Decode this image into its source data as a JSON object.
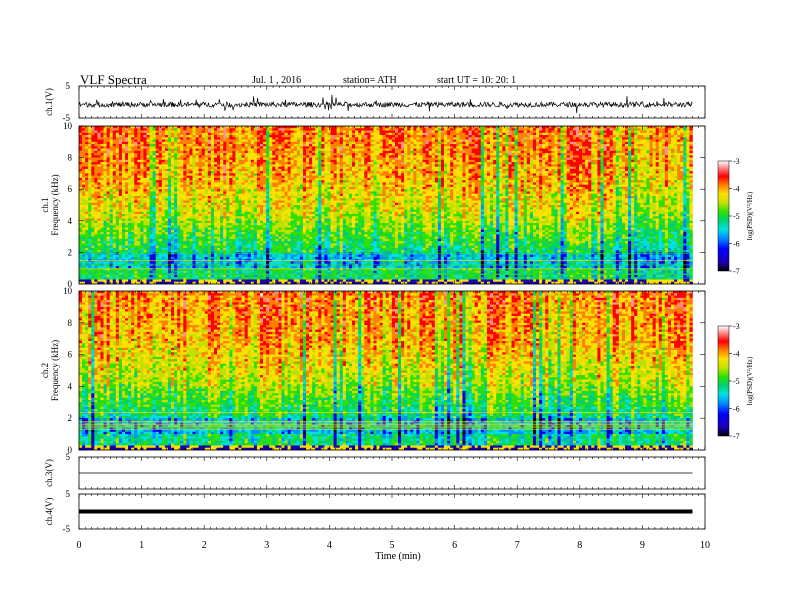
{
  "header": {
    "title": "VLF  Spectra",
    "date": "Jul.  1  , 2016",
    "station": "station= ATH",
    "start": "start  UT  =    10: 20: 1"
  },
  "chart_data": [
    {
      "type": "line",
      "panel": "ch1-waveform",
      "ylabel": "ch.1(V)",
      "ylim": [
        -5,
        5
      ],
      "ytick_labels": [
        "5",
        "-5"
      ],
      "trace_level": -0.8
    },
    {
      "type": "heatmap",
      "panel": "ch1-spectrogram",
      "ylabel_channel": "ch.1",
      "ylabel": "Frequency  (kHz)",
      "ylim": [
        0,
        10
      ],
      "yticks": [
        0,
        2,
        4,
        6,
        8,
        10
      ],
      "ytick_labels": [
        "0",
        "2",
        "4",
        "6",
        "8",
        "10"
      ],
      "colorbar": {
        "label": "log(PSD)(V²/Hz)",
        "ticks": [
          "-3",
          "-4",
          "-5",
          "-6",
          "-7"
        ],
        "range": [
          -7,
          -3
        ]
      }
    },
    {
      "type": "heatmap",
      "panel": "ch2-spectrogram",
      "ylabel_channel": "ch.2",
      "ylabel": "Frequency  (kHz)",
      "ylim": [
        0,
        10
      ],
      "yticks": [
        0,
        2,
        4,
        6,
        8,
        10
      ],
      "ytick_labels": [
        "0",
        "2",
        "4",
        "6",
        "8",
        "10"
      ],
      "colorbar": {
        "label": "log(PSD)(V²/Hz)",
        "ticks": [
          "-3",
          "-4",
          "-5",
          "-6",
          "-7"
        ],
        "range": [
          -7,
          -3
        ]
      }
    },
    {
      "type": "line",
      "panel": "ch3-waveform",
      "ylabel": "ch.3(V)",
      "ylim": [
        -5,
        5
      ],
      "ytick_labels": [
        "5"
      ],
      "trace_level": 0
    },
    {
      "type": "line",
      "panel": "ch4-waveform",
      "ylabel": "ch.4(V)",
      "ylim": [
        -5,
        5
      ],
      "ytick_labels": [
        "5",
        "-5"
      ],
      "trace_level": 0
    }
  ],
  "xaxis": {
    "label": "Time  (min)",
    "xlim": [
      0,
      10
    ],
    "ticks": [
      0,
      1,
      2,
      3,
      4,
      5,
      6,
      7,
      8,
      9,
      10
    ],
    "tick_labels": [
      "0",
      "1",
      "2",
      "3",
      "4",
      "5",
      "6",
      "7",
      "8",
      "9",
      "10"
    ],
    "data_end": 9.8
  },
  "colors": {
    "palette": [
      "#000000",
      "#1a00b0",
      "#0000ff",
      "#0090ff",
      "#00e0e0",
      "#00d070",
      "#30e000",
      "#c0e000",
      "#ffe000",
      "#ff8000",
      "#ff0000",
      "#ff9090",
      "#ffffff"
    ]
  }
}
